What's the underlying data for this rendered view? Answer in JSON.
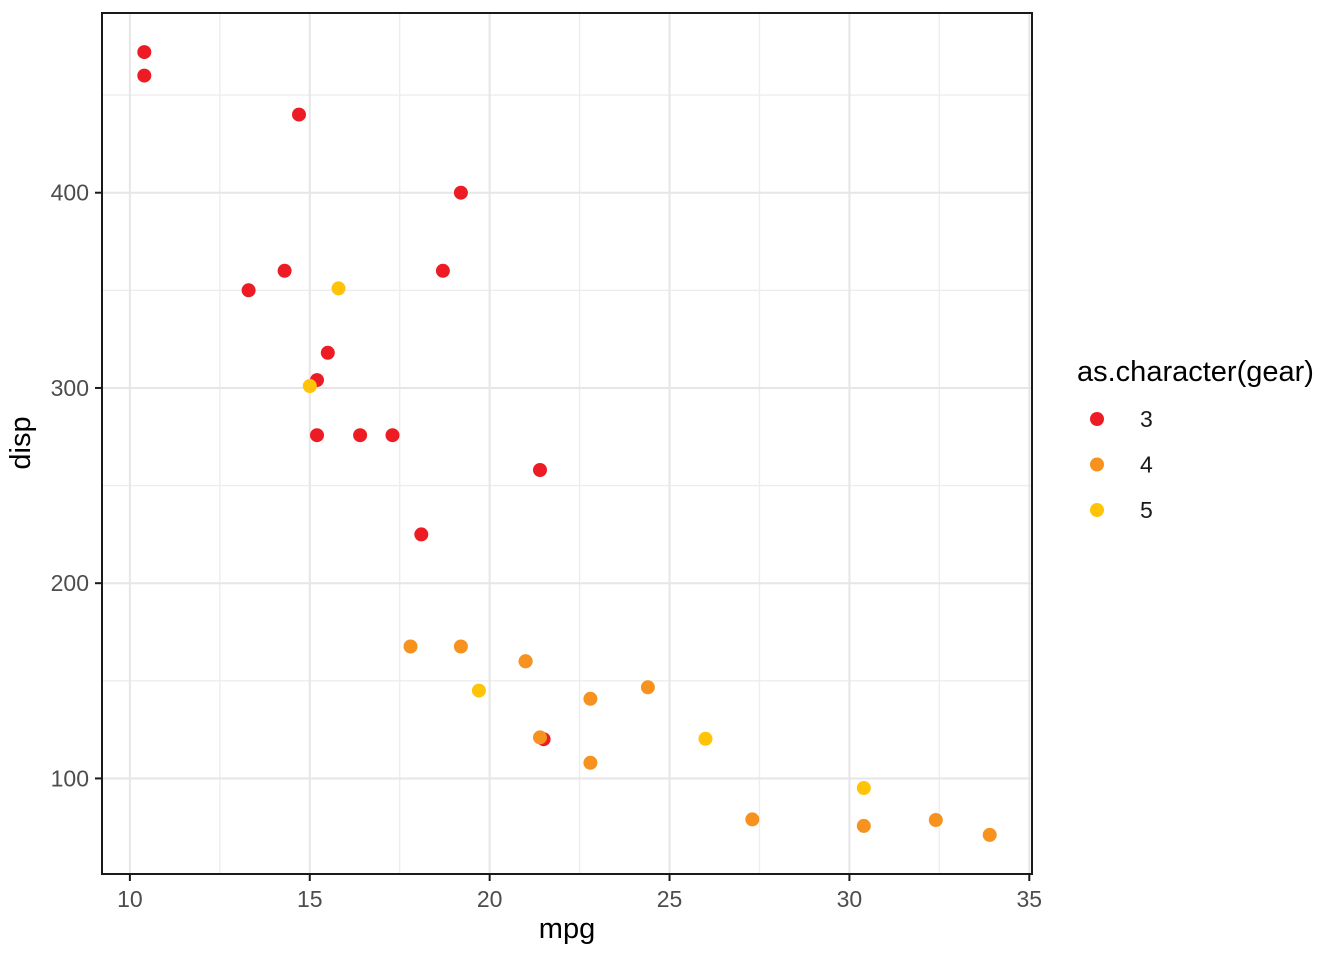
{
  "chart_data": {
    "type": "scatter",
    "title": "",
    "xlabel": "mpg",
    "ylabel": "disp",
    "xlim": [
      9.225,
      35.075
    ],
    "ylim": [
      51.055,
      492.045
    ],
    "x_ticks": [
      10,
      15,
      20,
      25,
      30,
      35
    ],
    "y_ticks": [
      100,
      200,
      300,
      400
    ],
    "x_minor_gridlines": [
      12.5,
      17.5,
      22.5,
      27.5,
      32.5
    ],
    "y_minor_gridlines": [
      150,
      250,
      350,
      450
    ],
    "grid": true,
    "legend": {
      "title": "as.character(gear)",
      "position": "right",
      "entries": [
        {
          "label": "3",
          "color": "#ED1C24"
        },
        {
          "label": "4",
          "color": "#F6921D"
        },
        {
          "label": "5",
          "color": "#FFC408"
        }
      ]
    },
    "series": [
      {
        "name": "3",
        "color": "#ED1C24",
        "points": [
          [
            21.4,
            258
          ],
          [
            18.7,
            360
          ],
          [
            18.1,
            225
          ],
          [
            14.3,
            360
          ],
          [
            16.4,
            275.8
          ],
          [
            17.3,
            275.8
          ],
          [
            15.2,
            275.8
          ],
          [
            10.4,
            472
          ],
          [
            10.4,
            460
          ],
          [
            14.7,
            440
          ],
          [
            21.5,
            120.1
          ],
          [
            15.5,
            318
          ],
          [
            15.2,
            304
          ],
          [
            13.3,
            350
          ],
          [
            19.2,
            400
          ]
        ]
      },
      {
        "name": "4",
        "color": "#F6921D",
        "points": [
          [
            21.0,
            160
          ],
          [
            21.0,
            160
          ],
          [
            22.8,
            108
          ],
          [
            24.4,
            146.7
          ],
          [
            22.8,
            140.8
          ],
          [
            19.2,
            167.6
          ],
          [
            17.8,
            167.6
          ],
          [
            32.4,
            78.7
          ],
          [
            30.4,
            75.7
          ],
          [
            33.9,
            71.1
          ],
          [
            27.3,
            79
          ],
          [
            21.4,
            121
          ]
        ]
      },
      {
        "name": "5",
        "color": "#FFC408",
        "points": [
          [
            26.0,
            120.3
          ],
          [
            30.4,
            95.1
          ],
          [
            15.8,
            351
          ],
          [
            19.7,
            145
          ],
          [
            15.0,
            301
          ]
        ]
      }
    ]
  },
  "style": {
    "background": "#FFFFFF",
    "panel_background": "#FFFFFF",
    "grid_major_color": "#E6E6E6",
    "grid_minor_color": "#EDEDED",
    "panel_border_color": "#1A1A1A",
    "tick_mark_color": "#1A1A1A",
    "tick_label_color": "#4D4D4D",
    "axis_title_color": "#000000",
    "legend_text_color": "#1A1A1A"
  }
}
